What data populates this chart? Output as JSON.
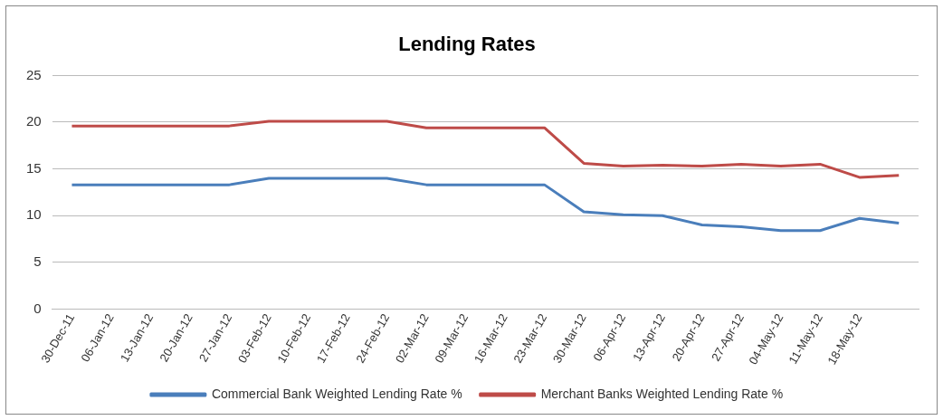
{
  "chart_data": {
    "type": "line",
    "title": "Lending Rates",
    "categories": [
      "30-Dec-11",
      "06-Jan-12",
      "13-Jan-12",
      "20-Jan-12",
      "27-Jan-12",
      "03-Feb-12",
      "10-Feb-12",
      "17-Feb-12",
      "24-Feb-12",
      "02-Mar-12",
      "09-Mar-12",
      "16-Mar-12",
      "23-Mar-12",
      "30-Mar-12",
      "06-Apr-12",
      "13-Apr-12",
      "20-Apr-12",
      "27-Apr-12",
      "04-May-12",
      "11-May-12",
      "18-May-12",
      null
    ],
    "series": [
      {
        "name": "Commercial Bank Weighted Lending Rate %",
        "color": "#4a7ebb",
        "values": [
          13.3,
          13.3,
          13.3,
          13.3,
          13.3,
          14.0,
          14.0,
          14.0,
          14.0,
          13.3,
          13.3,
          13.3,
          13.3,
          10.4,
          10.1,
          10.0,
          9.0,
          8.8,
          8.4,
          8.4,
          9.7,
          9.2
        ]
      },
      {
        "name": "Merchant Banks Weighted Lending Rate %",
        "color": "#be4b48",
        "values": [
          19.6,
          19.6,
          19.6,
          19.6,
          19.6,
          20.1,
          20.1,
          20.1,
          20.1,
          19.4,
          19.4,
          19.4,
          19.4,
          15.6,
          15.3,
          15.4,
          15.3,
          15.5,
          15.3,
          15.5,
          14.1,
          14.3
        ]
      }
    ],
    "ylim": [
      0,
      25
    ],
    "yticks": [
      0,
      5,
      10,
      15,
      20,
      25
    ],
    "grid": "y",
    "legend": "bottom",
    "marker": "none",
    "line_style": "solid"
  }
}
